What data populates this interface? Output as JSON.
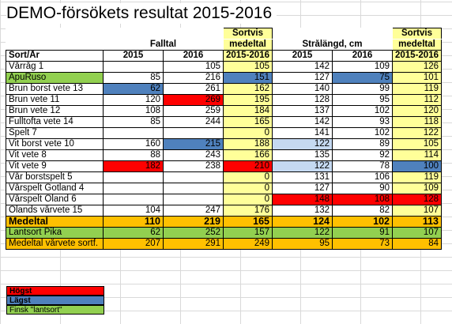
{
  "title": "DEMO-försökets resultat 2015-2016",
  "headers": {
    "falltal": "Falltal",
    "sortvis1a": "Sortvis",
    "sortvis1b": "medeltal",
    "stralangd": "Strålängd, cm",
    "sortvis2a": "Sortvis",
    "sortvis2b": "medeltal",
    "sort_ar": "Sort/År",
    "y2015a": "2015",
    "y2016a": "2016",
    "range1": "2015-2016",
    "y2015b": "2015",
    "y2016b": "2016",
    "range2": "2015-2016"
  },
  "rows": [
    {
      "label": "Vårråg 1",
      "v": [
        "",
        "105",
        "105",
        "142",
        "109",
        "126"
      ]
    },
    {
      "label": "ApuRuso",
      "v": [
        "85",
        "216",
        "151",
        "127",
        "75",
        "101"
      ]
    },
    {
      "label": "Brun borst vete 13",
      "v": [
        "62",
        "261",
        "162",
        "140",
        "99",
        "119"
      ]
    },
    {
      "label": "Brun vete 11",
      "v": [
        "120",
        "269",
        "195",
        "128",
        "95",
        "112"
      ]
    },
    {
      "label": "Brun vete 12",
      "v": [
        "108",
        "259",
        "184",
        "137",
        "102",
        "120"
      ]
    },
    {
      "label": "Fulltofta vete 14",
      "v": [
        "85",
        "244",
        "165",
        "142",
        "93",
        "118"
      ]
    },
    {
      "label": "Spelt 7",
      "v": [
        "",
        "",
        "0",
        "141",
        "102",
        "122"
      ]
    },
    {
      "label": "Vit borst vete 10",
      "v": [
        "160",
        "215",
        "188",
        "122",
        "89",
        "105"
      ]
    },
    {
      "label": "Vit vete 8",
      "v": [
        "88",
        "243",
        "166",
        "135",
        "92",
        "114"
      ]
    },
    {
      "label": "Vit vete 9",
      "v": [
        "182",
        "238",
        "210",
        "122",
        "78",
        "100"
      ]
    },
    {
      "label": "Vår borstspelt 5",
      "v": [
        "",
        "",
        "0",
        "131",
        "106",
        "119"
      ]
    },
    {
      "label": "Vårspelt Gotland 4",
      "v": [
        "",
        "",
        "0",
        "127",
        "90",
        "109"
      ]
    },
    {
      "label": "Vårspelt Öland 6",
      "v": [
        "",
        "",
        "0",
        "148",
        "108",
        "128"
      ]
    },
    {
      "label": "Ölands vårvete 15",
      "v": [
        "104",
        "247",
        "176",
        "132",
        "82",
        "107"
      ]
    }
  ],
  "summary": [
    {
      "label": "Medeltal",
      "v": [
        "110",
        "219",
        "165",
        "124",
        "102",
        "113"
      ]
    },
    {
      "label": "Lantsort Pika",
      "v": [
        "62",
        "252",
        "157",
        "122",
        "91",
        "107"
      ]
    },
    {
      "label": "Medeltal vårvete sortf.",
      "v": [
        "207",
        "291",
        "249",
        "95",
        "73",
        "84"
      ]
    }
  ],
  "legend": {
    "hogst": "Högst",
    "lagst": "Lägst",
    "finsk": "Finsk \"lantsort\""
  },
  "colors": {
    "highest": "#ff0000",
    "lowest": "#4f81bd",
    "finnish_landrace": "#92d050",
    "mean_column": "#ffff99",
    "mean_row": "#ffc000"
  }
}
